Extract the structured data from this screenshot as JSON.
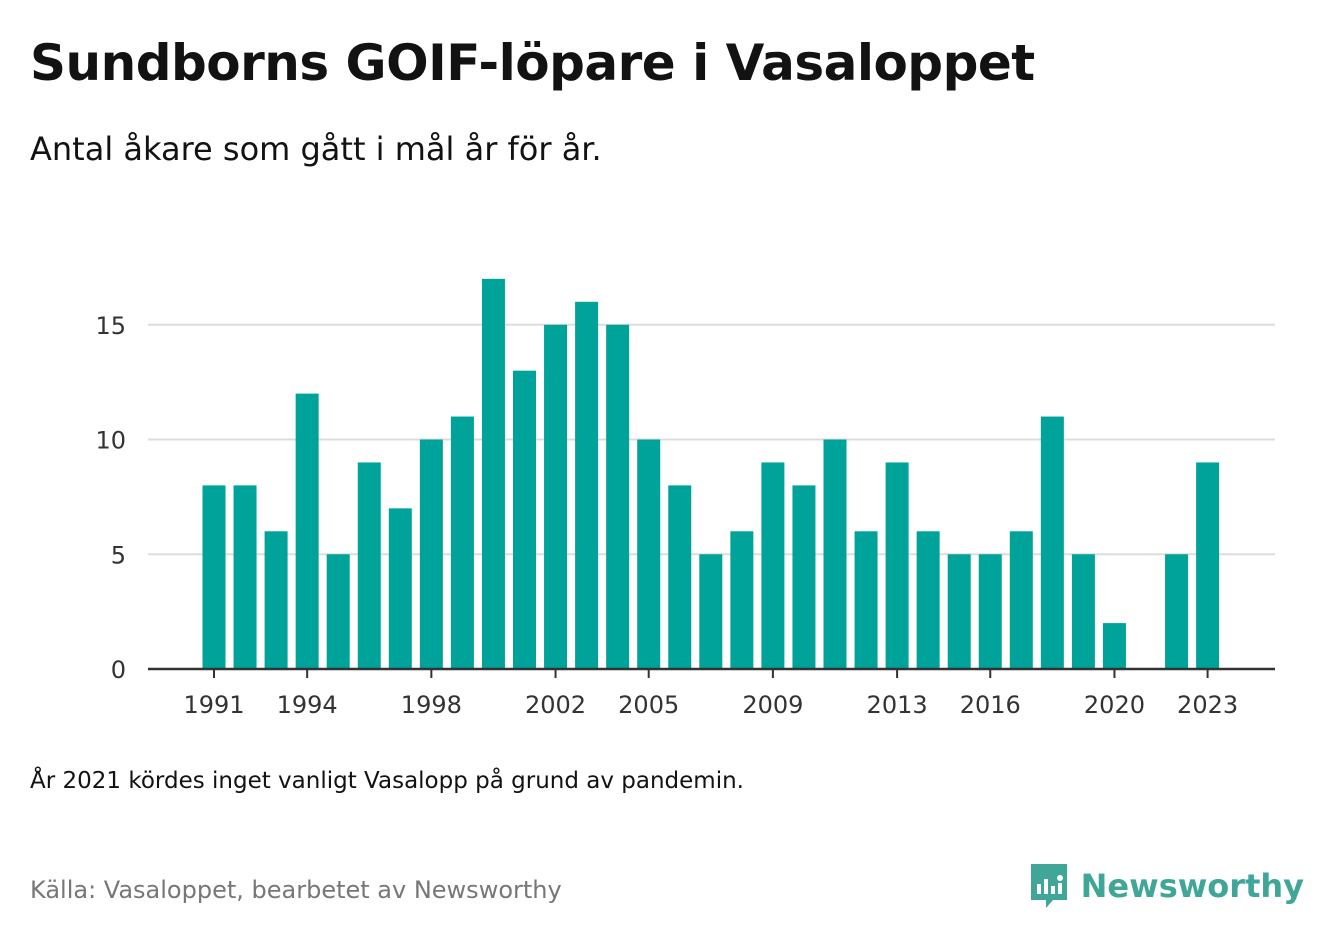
{
  "header": {
    "title": "Sundborns GOIF-löpare i Vasaloppet",
    "subtitle": "Antal åkare som gått i mål år för år."
  },
  "footer": {
    "note": "År 2021 kördes inget vanligt Vasalopp på grund av pandemin.",
    "source": "Källa: Vasaloppet, bearbetet av Newsworthy",
    "brand": "Newsworthy"
  },
  "colors": {
    "bar": "#00a39a",
    "grid": "#dddddd",
    "axis": "#333333",
    "brand": "#3fa698"
  },
  "chart_data": {
    "type": "bar",
    "categories": [
      "1991",
      "1992",
      "1993",
      "1994",
      "1995",
      "1996",
      "1997",
      "1998",
      "1999",
      "2000",
      "2001",
      "2002",
      "2003",
      "2004",
      "2005",
      "2006",
      "2007",
      "2008",
      "2009",
      "2010",
      "2011",
      "2012",
      "2013",
      "2014",
      "2015",
      "2016",
      "2017",
      "2018",
      "2019",
      "2020",
      "2021",
      "2022",
      "2023"
    ],
    "values": [
      8,
      8,
      6,
      12,
      5,
      9,
      7,
      10,
      11,
      17,
      13,
      15,
      16,
      15,
      10,
      8,
      5,
      6,
      9,
      8,
      10,
      6,
      9,
      6,
      5,
      5,
      6,
      11,
      5,
      2,
      null,
      5,
      9
    ],
    "x_tick_labels": [
      "1991",
      "1994",
      "1998",
      "2002",
      "2005",
      "2009",
      "2013",
      "2016",
      "2020",
      "2023"
    ],
    "y_ticks": [
      0,
      5,
      10,
      15
    ],
    "ylim": [
      0,
      18
    ],
    "grid": true
  }
}
